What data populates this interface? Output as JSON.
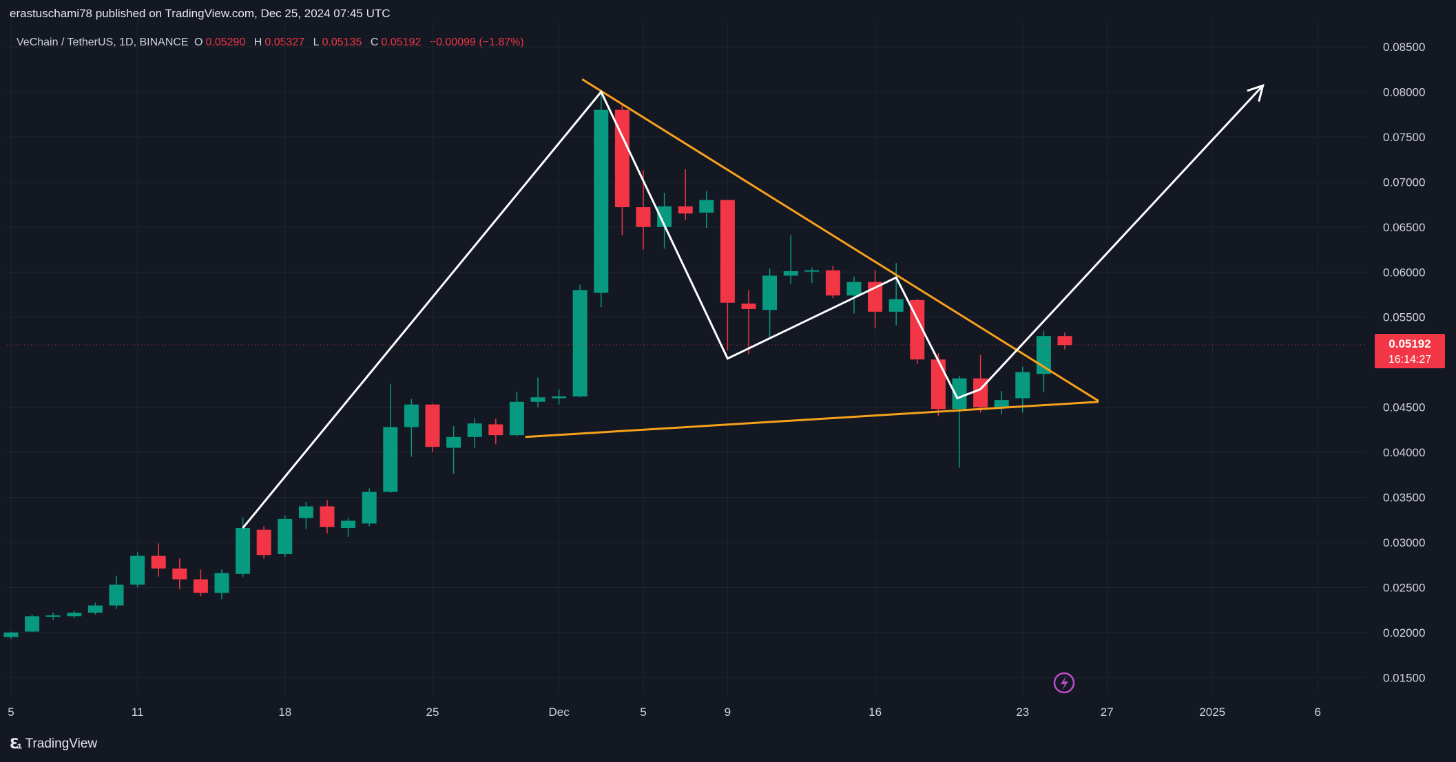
{
  "header": {
    "publisher": "erastuschami78 published on TradingView.com, Dec 25, 2024 07:45 UTC"
  },
  "legend": {
    "symbol": "VeChain / TetherUS, 1D, BINANCE",
    "o_label": "O",
    "o_value": "0.05290",
    "h_label": "H",
    "h_value": "0.05327",
    "l_label": "L",
    "l_value": "0.05135",
    "c_label": "C",
    "c_value": "0.05192",
    "change": "−0.00099 (−1.87%)"
  },
  "price_badge": {
    "price": "0.05192",
    "countdown": "16:14:27",
    "color": "#f23645"
  },
  "brand": {
    "name": "TradingView"
  },
  "colors": {
    "background": "#141823",
    "up": "#089981",
    "down": "#f23645",
    "trendline": "#f7a21b",
    "pattern": "#ffffff",
    "grid": "#20242f"
  },
  "chart_data": {
    "type": "candlestick",
    "y_ticks": [
      "0.08500",
      "0.08000",
      "0.07500",
      "0.07000",
      "0.06500",
      "0.06000",
      "0.05500",
      "0.04500",
      "0.04000",
      "0.03500",
      "0.03000",
      "0.02500",
      "0.02000",
      "0.01500"
    ],
    "x_ticks": [
      {
        "label": "5",
        "day": 5
      },
      {
        "label": "11",
        "day": 11
      },
      {
        "label": "18",
        "day": 18
      },
      {
        "label": "25",
        "day": 25
      },
      {
        "label": "Dec",
        "day": 31
      },
      {
        "label": "5",
        "day": 35
      },
      {
        "label": "9",
        "day": 39
      },
      {
        "label": "16",
        "day": 46
      },
      {
        "label": "23",
        "day": 53
      },
      {
        "label": "27",
        "day": 57
      },
      {
        "label": "2025",
        "day": 62
      },
      {
        "label": "6",
        "day": 67
      }
    ],
    "ylim": [
      0.0135,
      0.0865
    ],
    "candles": [
      {
        "day": 5,
        "o": 0.0195,
        "h": 0.0201,
        "l": 0.0193,
        "c": 0.02
      },
      {
        "day": 6,
        "o": 0.0201,
        "h": 0.022,
        "l": 0.02,
        "c": 0.0218
      },
      {
        "day": 7,
        "o": 0.0218,
        "h": 0.0222,
        "l": 0.0214,
        "c": 0.0219
      },
      {
        "day": 8,
        "o": 0.0218,
        "h": 0.0224,
        "l": 0.0216,
        "c": 0.0222
      },
      {
        "day": 9,
        "o": 0.0222,
        "h": 0.0233,
        "l": 0.022,
        "c": 0.023
      },
      {
        "day": 10,
        "o": 0.023,
        "h": 0.0263,
        "l": 0.0226,
        "c": 0.0253
      },
      {
        "day": 11,
        "o": 0.0253,
        "h": 0.0289,
        "l": 0.025,
        "c": 0.0285
      },
      {
        "day": 12,
        "o": 0.0285,
        "h": 0.0299,
        "l": 0.0262,
        "c": 0.0271
      },
      {
        "day": 13,
        "o": 0.0271,
        "h": 0.0282,
        "l": 0.0248,
        "c": 0.0259
      },
      {
        "day": 14,
        "o": 0.0259,
        "h": 0.027,
        "l": 0.024,
        "c": 0.0244
      },
      {
        "day": 15,
        "o": 0.0244,
        "h": 0.027,
        "l": 0.0237,
        "c": 0.0266
      },
      {
        "day": 16,
        "o": 0.0265,
        "h": 0.0328,
        "l": 0.0262,
        "c": 0.0316
      },
      {
        "day": 17,
        "o": 0.0314,
        "h": 0.0318,
        "l": 0.0282,
        "c": 0.0286
      },
      {
        "day": 18,
        "o": 0.0287,
        "h": 0.033,
        "l": 0.0284,
        "c": 0.0326
      },
      {
        "day": 19,
        "o": 0.0327,
        "h": 0.0345,
        "l": 0.0315,
        "c": 0.034
      },
      {
        "day": 20,
        "o": 0.034,
        "h": 0.0347,
        "l": 0.031,
        "c": 0.0317
      },
      {
        "day": 21,
        "o": 0.0316,
        "h": 0.0327,
        "l": 0.0306,
        "c": 0.0324
      },
      {
        "day": 22,
        "o": 0.0321,
        "h": 0.036,
        "l": 0.0318,
        "c": 0.0356
      },
      {
        "day": 23,
        "o": 0.0356,
        "h": 0.0476,
        "l": 0.0355,
        "c": 0.0428
      },
      {
        "day": 24,
        "o": 0.0428,
        "h": 0.0459,
        "l": 0.0395,
        "c": 0.0453
      },
      {
        "day": 25,
        "o": 0.0453,
        "h": 0.0454,
        "l": 0.04,
        "c": 0.0406
      },
      {
        "day": 26,
        "o": 0.0405,
        "h": 0.0429,
        "l": 0.0376,
        "c": 0.0417
      },
      {
        "day": 27,
        "o": 0.0417,
        "h": 0.0438,
        "l": 0.0405,
        "c": 0.0432
      },
      {
        "day": 28,
        "o": 0.0431,
        "h": 0.0437,
        "l": 0.0409,
        "c": 0.0419
      },
      {
        "day": 29,
        "o": 0.0419,
        "h": 0.0467,
        "l": 0.0418,
        "c": 0.0456
      },
      {
        "day": 30,
        "o": 0.0456,
        "h": 0.0483,
        "l": 0.045,
        "c": 0.0461
      },
      {
        "day": 31,
        "o": 0.046,
        "h": 0.047,
        "l": 0.0453,
        "c": 0.0462
      },
      {
        "day": 32,
        "o": 0.0462,
        "h": 0.0586,
        "l": 0.0461,
        "c": 0.058
      },
      {
        "day": 33,
        "o": 0.0577,
        "h": 0.08,
        "l": 0.0561,
        "c": 0.078
      },
      {
        "day": 34,
        "o": 0.078,
        "h": 0.0786,
        "l": 0.0641,
        "c": 0.0672
      },
      {
        "day": 35,
        "o": 0.0672,
        "h": 0.0713,
        "l": 0.0625,
        "c": 0.065
      },
      {
        "day": 36,
        "o": 0.065,
        "h": 0.0688,
        "l": 0.0626,
        "c": 0.0673
      },
      {
        "day": 37,
        "o": 0.0673,
        "h": 0.0714,
        "l": 0.0658,
        "c": 0.0665
      },
      {
        "day": 38,
        "o": 0.0666,
        "h": 0.069,
        "l": 0.0649,
        "c": 0.068
      },
      {
        "day": 39,
        "o": 0.068,
        "h": 0.068,
        "l": 0.0513,
        "c": 0.0566
      },
      {
        "day": 40,
        "o": 0.0565,
        "h": 0.058,
        "l": 0.0509,
        "c": 0.0559
      },
      {
        "day": 41,
        "o": 0.0558,
        "h": 0.0604,
        "l": 0.0526,
        "c": 0.0596
      },
      {
        "day": 42,
        "o": 0.0596,
        "h": 0.0641,
        "l": 0.0587,
        "c": 0.0601
      },
      {
        "day": 43,
        "o": 0.0601,
        "h": 0.0605,
        "l": 0.0588,
        "c": 0.0602
      },
      {
        "day": 44,
        "o": 0.0602,
        "h": 0.0607,
        "l": 0.0571,
        "c": 0.0574
      },
      {
        "day": 45,
        "o": 0.0574,
        "h": 0.0595,
        "l": 0.0554,
        "c": 0.0589
      },
      {
        "day": 46,
        "o": 0.0589,
        "h": 0.0602,
        "l": 0.0538,
        "c": 0.0556
      },
      {
        "day": 47,
        "o": 0.0556,
        "h": 0.061,
        "l": 0.0541,
        "c": 0.057
      },
      {
        "day": 48,
        "o": 0.0569,
        "h": 0.057,
        "l": 0.0498,
        "c": 0.0503
      },
      {
        "day": 49,
        "o": 0.0503,
        "h": 0.051,
        "l": 0.044,
        "c": 0.0448
      },
      {
        "day": 50,
        "o": 0.0448,
        "h": 0.0485,
        "l": 0.0383,
        "c": 0.0482
      },
      {
        "day": 51,
        "o": 0.0482,
        "h": 0.0508,
        "l": 0.0444,
        "c": 0.045
      },
      {
        "day": 52,
        "o": 0.045,
        "h": 0.0468,
        "l": 0.0442,
        "c": 0.0458
      },
      {
        "day": 53,
        "o": 0.046,
        "h": 0.0495,
        "l": 0.0444,
        "c": 0.0489
      },
      {
        "day": 54,
        "o": 0.0487,
        "h": 0.0535,
        "l": 0.0467,
        "c": 0.0529
      },
      {
        "day": 55,
        "o": 0.0529,
        "h": 0.0533,
        "l": 0.0514,
        "c": 0.0519
      }
    ],
    "trendlines": [
      {
        "name": "upper-trendline",
        "from": {
          "day": 32.1,
          "price": 0.0814
        },
        "to": {
          "day": 56.6,
          "price": 0.0457
        }
      },
      {
        "name": "lower-trendline",
        "from": {
          "day": 29.4,
          "price": 0.0417
        },
        "to": {
          "day": 56.6,
          "price": 0.0456
        }
      }
    ],
    "zigzag": [
      {
        "day": 16,
        "price": 0.0316
      },
      {
        "day": 33,
        "price": 0.08
      },
      {
        "day": 39,
        "price": 0.0504
      },
      {
        "day": 47,
        "price": 0.0594
      },
      {
        "day": 49.9,
        "price": 0.046
      },
      {
        "day": 51,
        "price": 0.047
      }
    ],
    "projection": [
      {
        "day": 51,
        "price": 0.047
      },
      {
        "day": 64.4,
        "price": 0.0807
      }
    ],
    "current_price": 0.05192
  }
}
